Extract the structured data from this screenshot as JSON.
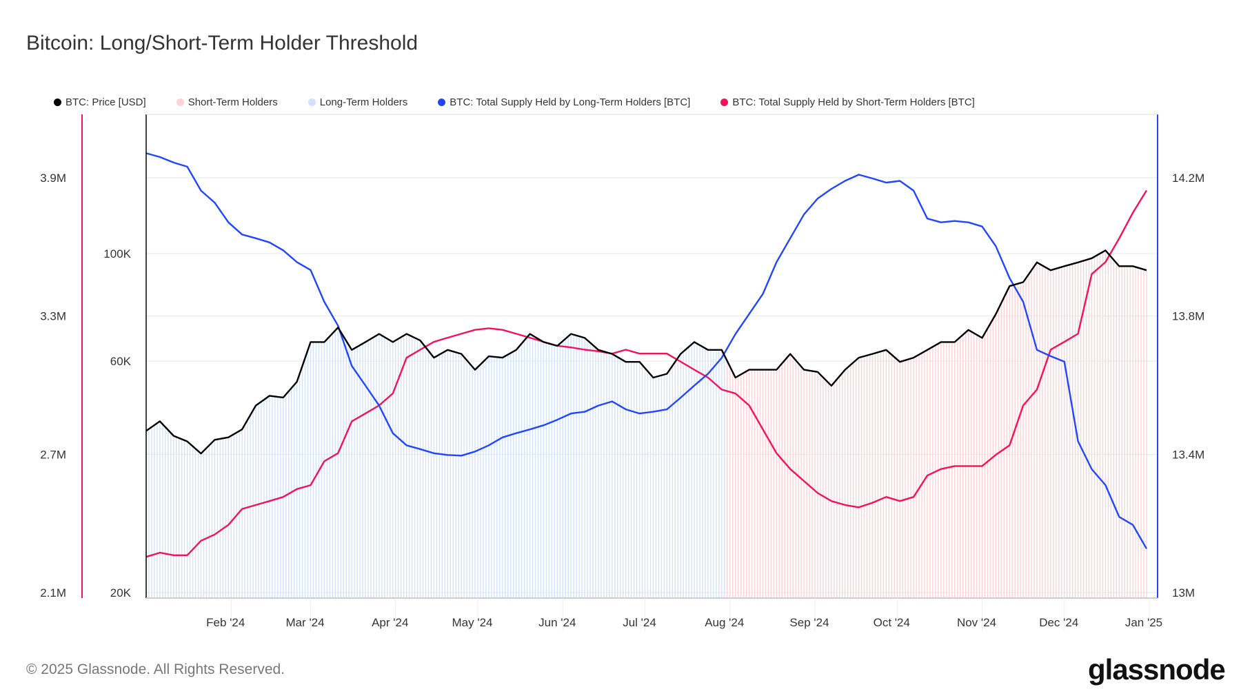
{
  "chart_data": {
    "type": "line",
    "title": "Bitcoin: Long/Short-Term Holder Threshold",
    "legend": [
      {
        "label": "BTC: Price [USD]",
        "color": "#000000"
      },
      {
        "label": "Short-Term Holders",
        "color": "#fbd3d6"
      },
      {
        "label": "Long-Term Holders",
        "color": "#d3e2fb"
      },
      {
        "label": "BTC: Total Supply Held by Long-Term Holders [BTC]",
        "color": "#1f45ff"
      },
      {
        "label": "BTC: Total Supply Held by Short-Term Holders [BTC]",
        "color": "#f5105a"
      }
    ],
    "legend_position": "top-left",
    "x_start_date": "2024-01-01",
    "x_step_days": 5,
    "x_ticks": [
      "Feb '24",
      "Mar '24",
      "Apr '24",
      "May '24",
      "Jun '24",
      "Jul '24",
      "Aug '24",
      "Sep '24",
      "Oct '24",
      "Nov '24",
      "Dec '24",
      "Jan '25"
    ],
    "x_tick_days": [
      31,
      60,
      91,
      121,
      152,
      182,
      213,
      244,
      274,
      305,
      335,
      366
    ],
    "left_axis_sth": {
      "ticks": [
        "2.1M",
        "2.7M",
        "3.3M",
        "3.9M"
      ],
      "tick_values": [
        2.1,
        2.7,
        3.3,
        3.9
      ],
      "range": [
        2.1,
        3.9
      ],
      "unit": "M BTC"
    },
    "price_axis": {
      "ticks": [
        "20K",
        "60K",
        "100K"
      ],
      "tick_values": [
        20000,
        60000,
        100000
      ],
      "range": [
        20000,
        100000
      ],
      "scale": "log"
    },
    "right_axis_lth": {
      "ticks": [
        "13M",
        "13.4M",
        "13.8M",
        "14.2M"
      ],
      "tick_values": [
        13,
        13.4,
        13.8,
        14.2
      ],
      "range": [
        13,
        14.2
      ],
      "unit": "M BTC"
    },
    "regime_switch_day": 212,
    "series": [
      {
        "name": "BTC: Price [USD]",
        "axis": "price",
        "color": "#000000",
        "values": [
          43100,
          45100,
          42100,
          41000,
          38700,
          41300,
          41800,
          43400,
          48600,
          50900,
          50500,
          54400,
          65700,
          65700,
          70400,
          63300,
          65700,
          68300,
          65700,
          68300,
          66200,
          61000,
          63300,
          62100,
          57600,
          61400,
          61000,
          63300,
          68300,
          65700,
          64500,
          68300,
          67000,
          63300,
          62100,
          59800,
          59800,
          55500,
          56500,
          62100,
          65700,
          63300,
          63300,
          55500,
          57600,
          57600,
          57600,
          62100,
          57600,
          57000,
          53400,
          57600,
          61000,
          62100,
          63300,
          59800,
          61000,
          63300,
          65700,
          65700,
          69600,
          67000,
          75000,
          85700,
          87300,
          95900,
          92400,
          94200,
          95900,
          97800,
          101500,
          94200,
          94200,
          92400
        ]
      },
      {
        "name": "BTC: Total Supply Held by Short-Term Holders [BTC]",
        "axis": "sth",
        "color": "#f5105a",
        "values": [
          2.255,
          2.273,
          2.262,
          2.262,
          2.325,
          2.352,
          2.394,
          2.463,
          2.48,
          2.497,
          2.515,
          2.549,
          2.566,
          2.67,
          2.705,
          2.843,
          2.877,
          2.912,
          2.964,
          3.119,
          3.154,
          3.188,
          3.206,
          3.223,
          3.24,
          3.247,
          3.24,
          3.223,
          3.206,
          3.188,
          3.171,
          3.164,
          3.154,
          3.147,
          3.137,
          3.154,
          3.137,
          3.137,
          3.137,
          3.102,
          3.067,
          3.033,
          2.981,
          2.964,
          2.912,
          2.808,
          2.705,
          2.636,
          2.584,
          2.532,
          2.497,
          2.48,
          2.47,
          2.49,
          2.515,
          2.497,
          2.515,
          2.608,
          2.636,
          2.649,
          2.649,
          2.649,
          2.698,
          2.739,
          2.912,
          2.981,
          3.154,
          3.188,
          3.223,
          3.482,
          3.534,
          3.637,
          3.748,
          3.845
        ]
      },
      {
        "name": "BTC: Total Supply Held by Long-Term Holders [BTC]",
        "axis": "lth",
        "color": "#1f45ff",
        "values": [
          14.271,
          14.26,
          14.244,
          14.232,
          14.163,
          14.128,
          14.071,
          14.036,
          14.025,
          14.013,
          13.99,
          13.956,
          13.933,
          13.841,
          13.772,
          13.656,
          13.599,
          13.541,
          13.461,
          13.426,
          13.415,
          13.403,
          13.398,
          13.396,
          13.408,
          13.426,
          13.449,
          13.461,
          13.472,
          13.484,
          13.5,
          13.518,
          13.523,
          13.541,
          13.553,
          13.53,
          13.518,
          13.523,
          13.53,
          13.564,
          13.599,
          13.633,
          13.679,
          13.748,
          13.806,
          13.864,
          13.956,
          14.025,
          14.094,
          14.14,
          14.168,
          14.191,
          14.209,
          14.198,
          14.186,
          14.191,
          14.163,
          14.082,
          14.071,
          14.075,
          14.071,
          14.059,
          14.002,
          13.91,
          13.841,
          13.702,
          13.684,
          13.668,
          13.438,
          13.357,
          13.311,
          13.219,
          13.196,
          13.127
        ]
      }
    ]
  },
  "footer": {
    "copyright": "© 2025 Glassnode. All Rights Reserved.",
    "logo": "glassnode"
  }
}
